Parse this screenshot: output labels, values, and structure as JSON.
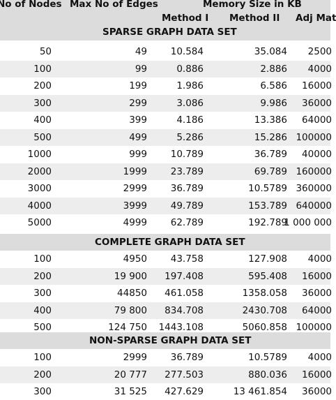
{
  "header": {
    "col_nodes": "No of Nodes",
    "col_edges": "Max No of Edges",
    "col_memory": "Memory Size in KB",
    "col_method1": "Method I",
    "col_method2": "Method II",
    "col_adj": "Adj Mat"
  },
  "sections": [
    {
      "title": "SPARSE GRAPH DATA SET",
      "rows": [
        {
          "nodes": "50",
          "edges": "49",
          "m1": "10.584",
          "m2": "35.084",
          "adj": "2500"
        },
        {
          "nodes": "100",
          "edges": "99",
          "m1": "0.886",
          "m2": "2.886",
          "adj": "4000"
        },
        {
          "nodes": "200",
          "edges": "199",
          "m1": "1.986",
          "m2": "6.586",
          "adj": "16000"
        },
        {
          "nodes": "300",
          "edges": "299",
          "m1": "3.086",
          "m2": "9.986",
          "adj": "36000"
        },
        {
          "nodes": "400",
          "edges": "399",
          "m1": "4.186",
          "m2": "13.386",
          "adj": "64000"
        },
        {
          "nodes": "500",
          "edges": "499",
          "m1": "5.286",
          "m2": "15.286",
          "adj": "100000"
        },
        {
          "nodes": "1000",
          "edges": "999",
          "m1": "10.789",
          "m2": "36.789",
          "adj": "40000"
        },
        {
          "nodes": "2000",
          "edges": "1999",
          "m1": "23.789",
          "m2": "69.789",
          "adj": "160000"
        },
        {
          "nodes": "3000",
          "edges": "2999",
          "m1": "36.789",
          "m2": "10.5789",
          "adj": "360000"
        },
        {
          "nodes": "4000",
          "edges": "3999",
          "m1": "49.789",
          "m2": "153.789",
          "adj": "640000"
        },
        {
          "nodes": "5000",
          "edges": "4999",
          "m1": "62.789",
          "m2": "192.789",
          "adj": "1 000 000"
        }
      ]
    },
    {
      "title": "COMPLETE GRAPH DATA SET",
      "rows": [
        {
          "nodes": "100",
          "edges": "4950",
          "m1": "43.758",
          "m2": "127.908",
          "adj": "4000"
        },
        {
          "nodes": "200",
          "edges": "19 900",
          "m1": "197.408",
          "m2": "595.408",
          "adj": "16000"
        },
        {
          "nodes": "300",
          "edges": "44850",
          "m1": "461.058",
          "m2": "1358.058",
          "adj": "36000"
        },
        {
          "nodes": "400",
          "edges": "79 800",
          "m1": "834.708",
          "m2": "2430.708",
          "adj": "64000"
        },
        {
          "nodes": "500",
          "edges": "124 750",
          "m1": "1443.108",
          "m2": "5060.858",
          "adj": "100000"
        }
      ]
    },
    {
      "title": "NON-SPARSE GRAPH DATA SET",
      "rows": [
        {
          "nodes": "100",
          "edges": "2999",
          "m1": "36.789",
          "m2": "10.5789",
          "adj": "4000"
        },
        {
          "nodes": "200",
          "edges": "20 777",
          "m1": "277.503",
          "m2": "880.036",
          "adj": "16000"
        },
        {
          "nodes": "300",
          "edges": "31 525",
          "m1": "427.629",
          "m2": "13 461.854",
          "adj": "36000"
        }
      ]
    }
  ]
}
